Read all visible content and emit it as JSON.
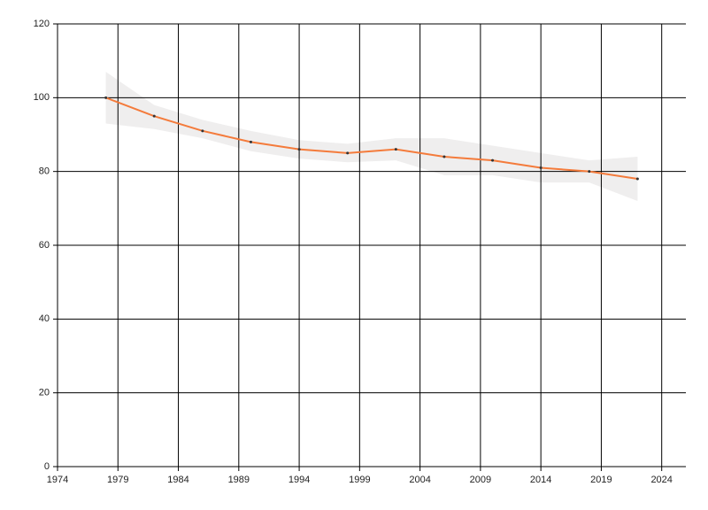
{
  "chart_data": {
    "type": "line",
    "x": [
      1978,
      1982,
      1986,
      1990,
      1994,
      1998,
      2002,
      2006,
      2010,
      2014,
      2018,
      2022
    ],
    "values": [
      100,
      95,
      91,
      88,
      86,
      85,
      86,
      84,
      83,
      81,
      80,
      78
    ],
    "upper": [
      107,
      98,
      94,
      91,
      88.5,
      87.5,
      89,
      89,
      87,
      85,
      83,
      84
    ],
    "lower": [
      93,
      91.5,
      89,
      85.5,
      83.5,
      82.5,
      83,
      79,
      79,
      77,
      77,
      72
    ],
    "color": "#f47b3b",
    "band_color": "#efeeee",
    "marker_color": "#333333",
    "xlim": [
      1974,
      2026
    ],
    "xticks": [
      1974,
      1979,
      1984,
      1989,
      1994,
      1999,
      2004,
      2009,
      2014,
      2019,
      2024
    ],
    "ylim": [
      0,
      120
    ],
    "yticks": [
      0,
      20,
      40,
      60,
      80,
      100,
      120
    ],
    "grid": true
  }
}
